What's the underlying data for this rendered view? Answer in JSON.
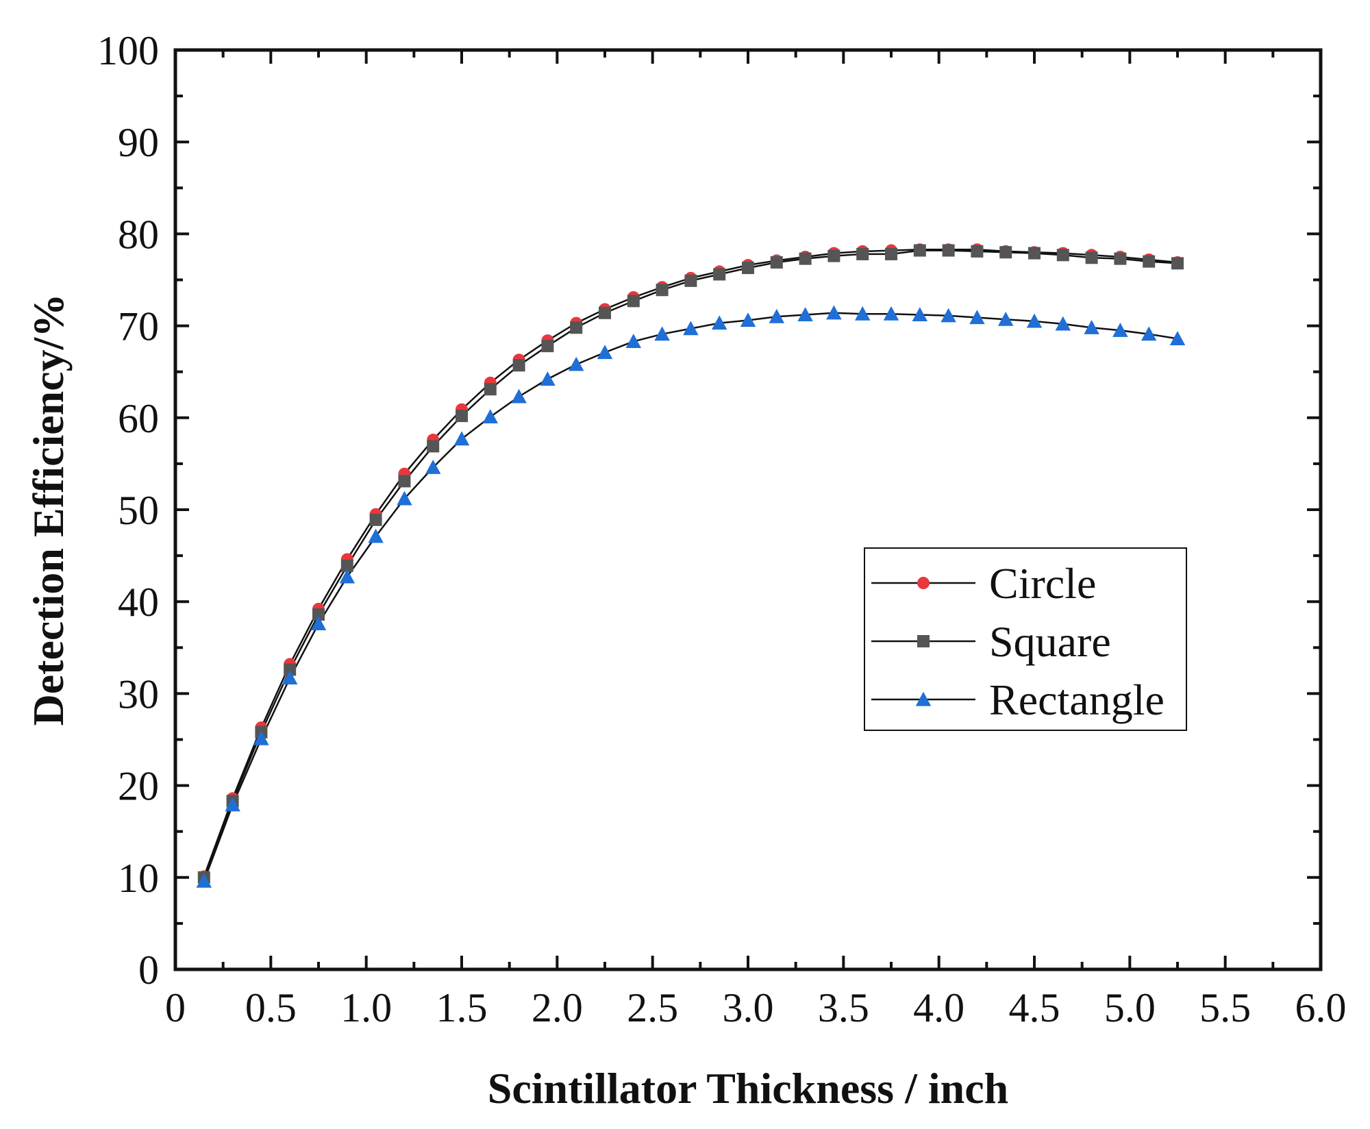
{
  "chart_data": {
    "type": "line",
    "title": "",
    "xlabel": "Scintillator Thickness / inch",
    "ylabel": "Detection Efficiency/%",
    "xlim": [
      0,
      6.0
    ],
    "ylim": [
      0,
      100
    ],
    "x_ticks": [
      0,
      0.5,
      1.0,
      1.5,
      2.0,
      2.5,
      3.0,
      3.5,
      4.0,
      4.5,
      5.0,
      5.5,
      6.0
    ],
    "x_tick_labels": [
      "0",
      "0.5",
      "1.0",
      "1.5",
      "2.0",
      "2.5",
      "3.0",
      "3.5",
      "4.0",
      "4.5",
      "5.0",
      "5.5",
      "6.0"
    ],
    "y_ticks": [
      0,
      10,
      20,
      30,
      40,
      50,
      60,
      70,
      80,
      90,
      100
    ],
    "y_tick_labels": [
      "0",
      "10",
      "20",
      "30",
      "40",
      "50",
      "60",
      "70",
      "80",
      "90",
      "100"
    ],
    "grid": false,
    "legend_position": "center-right",
    "x": [
      0.15,
      0.3,
      0.45,
      0.6,
      0.75,
      0.9,
      1.05,
      1.2,
      1.35,
      1.5,
      1.65,
      1.8,
      1.95,
      2.1,
      2.25,
      2.4,
      2.55,
      2.7,
      2.85,
      3.0,
      3.15,
      3.3,
      3.45,
      3.6,
      3.75,
      3.9,
      4.05,
      4.2,
      4.35,
      4.5,
      4.65,
      4.8,
      4.95,
      5.1,
      5.25
    ],
    "series": [
      {
        "name": "Circle",
        "marker": "circle",
        "color": "#e8383d",
        "values": [
          10.1,
          18.6,
          26.3,
          33.2,
          39.2,
          44.6,
          49.5,
          53.9,
          57.6,
          60.9,
          63.8,
          66.3,
          68.4,
          70.3,
          71.8,
          73.1,
          74.2,
          75.2,
          75.9,
          76.6,
          77.1,
          77.5,
          77.9,
          78.1,
          78.2,
          78.3,
          78.3,
          78.3,
          78.1,
          78.0,
          77.9,
          77.7,
          77.5,
          77.2,
          76.9
        ]
      },
      {
        "name": "Square",
        "marker": "square",
        "color": "#555555",
        "values": [
          10.0,
          18.3,
          25.8,
          32.6,
          38.6,
          43.9,
          48.9,
          53.1,
          56.9,
          60.2,
          63.1,
          65.7,
          67.8,
          69.8,
          71.4,
          72.7,
          73.9,
          74.9,
          75.6,
          76.3,
          76.9,
          77.3,
          77.6,
          77.8,
          77.8,
          78.2,
          78.2,
          78.1,
          78.0,
          77.9,
          77.7,
          77.4,
          77.3,
          77.0,
          76.8
        ]
      },
      {
        "name": "Rectangle",
        "marker": "triangle",
        "color": "#1f6fd6",
        "values": [
          9.6,
          17.9,
          25.1,
          31.7,
          37.6,
          42.7,
          47.1,
          51.2,
          54.6,
          57.7,
          60.1,
          62.3,
          64.2,
          65.8,
          67.1,
          68.3,
          69.1,
          69.7,
          70.3,
          70.6,
          71.0,
          71.2,
          71.4,
          71.3,
          71.3,
          71.2,
          71.1,
          70.9,
          70.7,
          70.5,
          70.2,
          69.8,
          69.5,
          69.1,
          68.6
        ]
      }
    ]
  }
}
